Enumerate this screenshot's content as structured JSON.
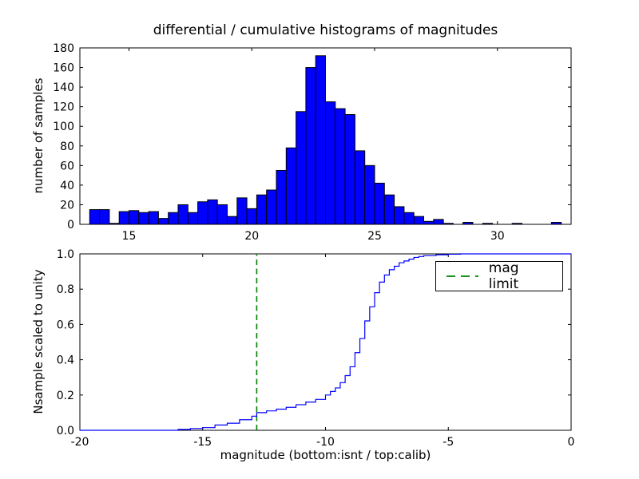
{
  "figure": {
    "background": "#ffffff"
  },
  "chart_data": [
    {
      "type": "bar",
      "subtype": "histogram",
      "title": "differential / cumulative histograms of magnitudes",
      "ylabel": "number of samples",
      "bar_color": "#0000ff",
      "bar_edge_color": "#000000",
      "bin_start": 13.4,
      "bin_width": 0.4,
      "values": [
        15,
        15,
        1,
        13,
        14,
        12,
        13,
        6,
        12,
        20,
        12,
        23,
        25,
        20,
        8,
        27,
        16,
        30,
        35,
        55,
        78,
        115,
        160,
        172,
        125,
        118,
        112,
        75,
        60,
        42,
        30,
        18,
        12,
        8,
        3,
        5,
        1,
        0,
        2,
        0,
        1,
        0,
        0,
        1,
        0,
        0,
        0,
        2
      ],
      "xlim": [
        13,
        33
      ],
      "ylim": [
        0,
        180
      ],
      "xticks": [
        15,
        20,
        25,
        30
      ],
      "yticks": [
        0,
        20,
        40,
        60,
        80,
        100,
        120,
        140,
        160,
        180
      ],
      "grid": false,
      "legend": null
    },
    {
      "type": "line",
      "subtype": "cumulative-step",
      "ylabel": "Nsample scaled to unity",
      "xlabel": "magnitude (bottom:isnt / top:calib)",
      "line_color": "#0000ff",
      "curve": {
        "x": [
          -20,
          -16.5,
          -16,
          -15.5,
          -15,
          -14.5,
          -14,
          -13.5,
          -13,
          -12.8,
          -12.4,
          -12,
          -11.6,
          -11.2,
          -10.8,
          -10.4,
          -10,
          -9.8,
          -9.6,
          -9.4,
          -9.2,
          -9,
          -8.8,
          -8.6,
          -8.4,
          -8.2,
          -8,
          -7.8,
          -7.6,
          -7.4,
          -7.2,
          -7,
          -6.8,
          -6.6,
          -6.4,
          -6.2,
          -6,
          -5.5,
          -5,
          -4.5,
          0
        ],
        "y": [
          0,
          0,
          0.005,
          0.01,
          0.015,
          0.03,
          0.04,
          0.06,
          0.08,
          0.1,
          0.11,
          0.12,
          0.13,
          0.145,
          0.16,
          0.175,
          0.2,
          0.22,
          0.24,
          0.27,
          0.31,
          0.36,
          0.44,
          0.52,
          0.62,
          0.7,
          0.78,
          0.84,
          0.88,
          0.91,
          0.93,
          0.95,
          0.96,
          0.97,
          0.98,
          0.985,
          0.99,
          0.995,
          0.998,
          1.0,
          1.0
        ]
      },
      "xlim": [
        -20,
        0
      ],
      "ylim": [
        0,
        1.0
      ],
      "xticks": [
        -20,
        -15,
        -10,
        -5,
        0
      ],
      "yticks": [
        0.0,
        0.2,
        0.4,
        0.6,
        0.8,
        1.0
      ],
      "mag_limit_line": {
        "x": -12.8,
        "color": "#008000",
        "style": "dashed",
        "label": "mag limit"
      },
      "legend": {
        "location": "upper right",
        "entries": [
          {
            "label": "mag limit",
            "color": "#008000",
            "style": "dashed"
          }
        ]
      },
      "grid": false
    }
  ]
}
